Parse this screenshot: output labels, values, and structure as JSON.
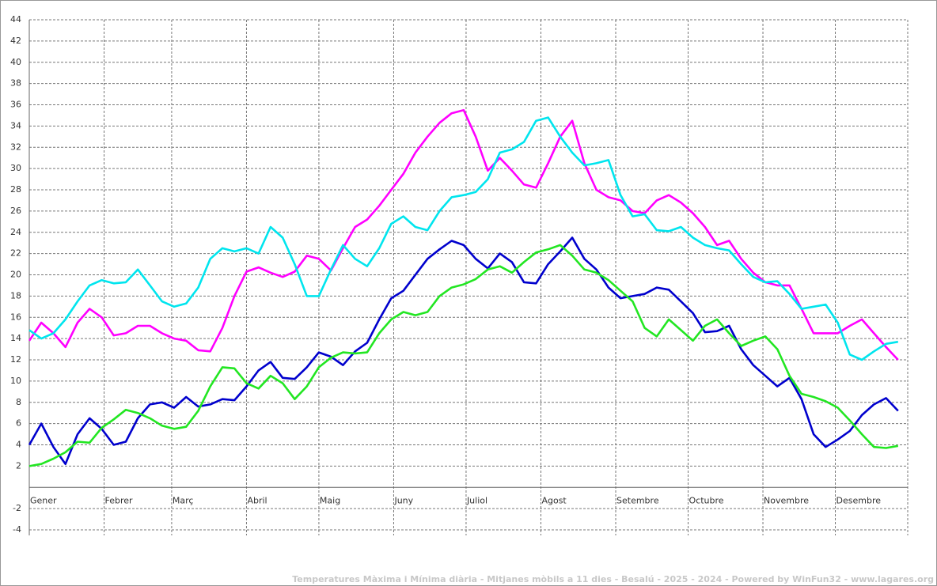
{
  "chart_data": {
    "type": "line",
    "title": "Temperatures Màxima i Mínima diària - Mitjanes mòbils a 11 dies - Besalú - 2025 - 2024 - Powered by WinFun32 - www.lagares.org",
    "x": [
      0,
      5,
      10,
      15,
      20,
      25,
      30,
      35,
      40,
      45,
      50,
      55,
      60,
      65,
      70,
      75,
      80,
      85,
      90,
      95,
      100,
      105,
      110,
      115,
      120,
      125,
      130,
      135,
      140,
      145,
      150,
      155,
      160,
      165,
      170,
      175,
      180,
      185,
      190,
      195,
      200,
      205,
      210,
      215,
      220,
      225,
      230,
      235,
      240,
      245,
      250,
      255,
      260,
      265,
      270,
      275,
      280,
      285,
      290,
      295,
      300,
      305,
      310,
      315,
      320,
      325,
      330,
      335,
      340,
      345,
      350,
      355,
      360
    ],
    "xlim": [
      0,
      364
    ],
    "xticks": [
      {
        "value": 0,
        "label": "Gener"
      },
      {
        "value": 31,
        "label": "Febrer"
      },
      {
        "value": 59,
        "label": "Març"
      },
      {
        "value": 90,
        "label": "Abril"
      },
      {
        "value": 120,
        "label": "Maig"
      },
      {
        "value": 151,
        "label": "Juny"
      },
      {
        "value": 181,
        "label": "Juliol"
      },
      {
        "value": 212,
        "label": "Agost"
      },
      {
        "value": 243,
        "label": "Setembre"
      },
      {
        "value": 273,
        "label": "Octubre"
      },
      {
        "value": 304,
        "label": "Novembre"
      },
      {
        "value": 334,
        "label": "Desembre"
      }
    ],
    "ylim": [
      -4,
      44
    ],
    "yticks": [
      -4,
      -2,
      2,
      4,
      6,
      8,
      10,
      12,
      14,
      16,
      18,
      20,
      22,
      24,
      26,
      28,
      30,
      32,
      34,
      36,
      38,
      40,
      42,
      44
    ],
    "grid": true,
    "series": [
      {
        "color": "#ff00ff",
        "values": [
          13.8,
          15.5,
          14.5,
          13.2,
          15.5,
          16.8,
          16,
          14.3,
          14.5,
          15.2,
          15.2,
          14.5,
          14,
          13.8,
          12.9,
          12.8,
          15,
          18,
          20.3,
          20.7,
          20.2,
          19.8,
          20.3,
          21.8,
          21.5,
          20.4,
          22.5,
          24.5,
          25.2,
          26.5,
          28,
          29.5,
          31.5,
          33,
          34.3,
          35.2,
          35.5,
          33,
          29.8,
          31,
          29.8,
          28.5,
          28.2,
          30.5,
          33,
          34.5,
          30.5,
          28,
          27.3,
          27,
          26,
          25.8,
          27,
          27.5,
          26.8,
          25.8,
          24.5,
          22.8,
          23.2,
          21.5,
          20.2,
          19.3,
          19,
          19,
          16.8,
          14.5,
          14.5,
          14.5,
          15.2,
          15.8,
          14.5,
          13.2,
          12
        ]
      },
      {
        "color": "#00e5ee",
        "values": [
          14.8,
          14,
          14.5,
          15.8,
          17.5,
          19,
          19.5,
          19.2,
          19.3,
          20.5,
          19,
          17.5,
          17,
          17.3,
          18.8,
          21.5,
          22.5,
          22.2,
          22.5,
          22,
          24.5,
          23.5,
          21,
          18,
          18,
          20.5,
          22.8,
          21.5,
          20.8,
          22.5,
          24.8,
          25.5,
          24.5,
          24.2,
          26,
          27.3,
          27.5,
          27.8,
          29,
          31.5,
          31.8,
          32.5,
          34.5,
          34.8,
          33,
          31.5,
          30.3,
          30.5,
          30.8,
          27.5,
          25.5,
          25.7,
          24.2,
          24.1,
          24.5,
          23.5,
          22.8,
          22.5,
          22.3,
          21,
          19.8,
          19.3,
          19.4,
          18.2,
          16.8,
          17,
          17.2,
          15.5,
          12.5,
          12,
          12.8,
          13.5,
          13.7
        ]
      },
      {
        "color": "#0000cd",
        "values": [
          4,
          6,
          3.8,
          2.2,
          5,
          6.5,
          5.5,
          4,
          4.3,
          6.5,
          7.8,
          8,
          7.5,
          8.5,
          7.6,
          7.8,
          8.3,
          8.2,
          9.5,
          11,
          11.8,
          10.3,
          10.2,
          11.3,
          12.7,
          12.3,
          11.5,
          12.8,
          13.6,
          15.8,
          17.8,
          18.5,
          20,
          21.5,
          22.4,
          23.2,
          22.8,
          21.5,
          20.6,
          22,
          21.2,
          19.3,
          19.2,
          21,
          22.2,
          23.5,
          21.5,
          20.5,
          18.8,
          17.8,
          18,
          18.2,
          18.8,
          18.6,
          17.5,
          16.4,
          14.6,
          14.7,
          15.2,
          13,
          11.5,
          10.5,
          9.5,
          10.3,
          8.3,
          5,
          3.8,
          4.5,
          5.3,
          6.8,
          7.8,
          8.4,
          7.2
        ]
      },
      {
        "color": "#22e622",
        "values": [
          2,
          2.2,
          2.7,
          3.3,
          4.3,
          4.2,
          5.6,
          6.4,
          7.3,
          7,
          6.5,
          5.8,
          5.5,
          5.7,
          7.2,
          9.5,
          11.3,
          11.2,
          9.8,
          9.3,
          10.5,
          9.8,
          8.3,
          9.5,
          11.3,
          12.2,
          12.7,
          12.6,
          12.7,
          14.5,
          15.8,
          16.5,
          16.2,
          16.5,
          18,
          18.8,
          19.1,
          19.6,
          20.5,
          20.8,
          20.2,
          21.2,
          22.1,
          22.4,
          22.8,
          21.8,
          20.5,
          20.2,
          19.5,
          18.5,
          17.5,
          15,
          14.2,
          15.8,
          14.8,
          13.8,
          15.2,
          15.8,
          14.5,
          13.3,
          13.8,
          14.2,
          13,
          10.5,
          8.8,
          8.5,
          8.1,
          7.5,
          6.3,
          5,
          3.8,
          3.7,
          3.9
        ]
      }
    ]
  }
}
